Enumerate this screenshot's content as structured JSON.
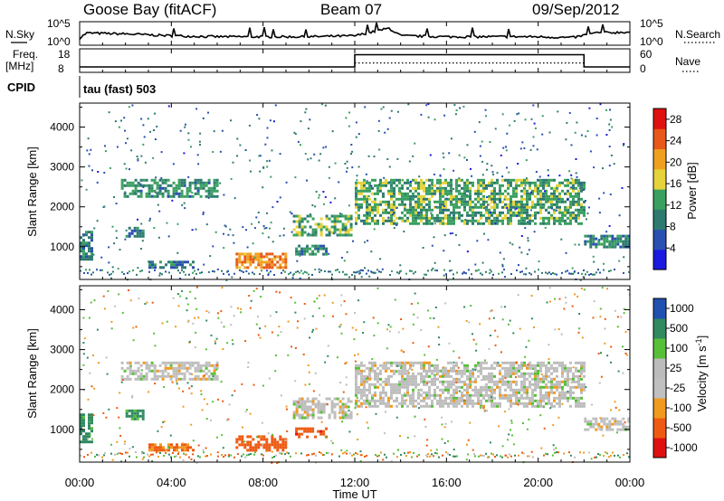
{
  "header": {
    "station": "Goose Bay (fitACF)",
    "beam": "Beam 07",
    "date": "09/Sep/2012"
  },
  "params": {
    "nsky_label": "N.Sky",
    "nsky_tick_hi": "10^5",
    "nsky_tick_lo": "10^0",
    "nsearch_label": "N.Search",
    "nsearch_tick_hi": "10^5",
    "nsearch_tick_lo": "10^0",
    "freq_label": "Freq.",
    "freq_unit": "[MHz]",
    "freq_tick_hi": "18",
    "freq_tick_lo": "8",
    "nave_label": "Nave",
    "nave_tick_hi": "60",
    "nave_tick_lo": "0",
    "cpid_label": "CPID",
    "cpid_text": "tau (fast) 503"
  },
  "colors": {
    "power_scale": [
      "#1a1ae0",
      "#2a4fb0",
      "#2e7a70",
      "#3aa060",
      "#e6d23a",
      "#f0a020",
      "#e85818",
      "#e01010"
    ],
    "velocity_scale": [
      "#e01010",
      "#ee5a12",
      "#f09a20",
      "#c0c0c0",
      "#bcbcbc",
      "#58c038",
      "#2f8a60",
      "#2050b0"
    ]
  },
  "chart_data": [
    {
      "type": "line",
      "name": "sky-noise-panel",
      "ylabel": "N.Sky",
      "y2label": "N.Search",
      "yticks": [
        "10^0",
        "10^5"
      ],
      "description_series": [
        {
          "name": "N.Sky",
          "x_hours": [
            0,
            0.3,
            2,
            4,
            6,
            8,
            10,
            12,
            13.5,
            14,
            16,
            18,
            20,
            21.5,
            22.5,
            24
          ],
          "values_log10": [
            1.5,
            2.6,
            2.4,
            2.0,
            1.8,
            1.8,
            1.8,
            2.0,
            3.6,
            2.0,
            1.8,
            1.8,
            1.8,
            1.6,
            2.6,
            2.8
          ]
        }
      ],
      "xlim": [
        0,
        24
      ]
    },
    {
      "type": "line",
      "name": "freq-nave-panel",
      "ylabel": "Freq. [MHz]",
      "y2label": "Nave",
      "ylim_left": [
        8,
        18
      ],
      "ylim_right": [
        0,
        60
      ],
      "series": [
        {
          "name": "Freq.",
          "x_hours": [
            0,
            12,
            12,
            22,
            22,
            24
          ],
          "values": [
            10.3,
            10.3,
            15.5,
            15.5,
            10.3,
            10.3
          ]
        },
        {
          "name": "Nave",
          "x_hours": [
            12,
            22
          ],
          "values": [
            24,
            24
          ]
        }
      ],
      "xlim": [
        0,
        24
      ]
    },
    {
      "type": "heatmap",
      "name": "power-panel",
      "ylabel": "Slant Range [km]",
      "ylim": [
        180,
        4600
      ],
      "yticks": [
        1000,
        2000,
        3000,
        4000
      ],
      "xlim": [
        0,
        24
      ],
      "colorbar": {
        "label": "Power [dB]",
        "ticks": [
          4,
          8,
          12,
          16,
          20,
          24,
          28
        ],
        "range": [
          0,
          30
        ]
      },
      "regions": [
        {
          "t0": 1.8,
          "t1": 6.0,
          "r0": 2250,
          "r1": 2700,
          "value": 11
        },
        {
          "t0": 2.0,
          "t1": 2.8,
          "r0": 1250,
          "r1": 1500,
          "value": 9
        },
        {
          "t0": 6.8,
          "t1": 9.0,
          "r0": 450,
          "r1": 850,
          "value": 22
        },
        {
          "t0": 3.0,
          "t1": 5.0,
          "r0": 500,
          "r1": 650,
          "value": 9
        },
        {
          "t0": 9.3,
          "t1": 11.9,
          "r0": 1300,
          "r1": 1800,
          "value": 13
        },
        {
          "t0": 9.4,
          "t1": 10.8,
          "r0": 800,
          "r1": 1050,
          "value": 10
        },
        {
          "t0": 12.0,
          "t1": 22.0,
          "r0": 1600,
          "r1": 2700,
          "value": 13
        },
        {
          "t0": 22.0,
          "t1": 24.0,
          "r0": 1000,
          "r1": 1300,
          "value": 10
        },
        {
          "t0": 0.0,
          "t1": 0.5,
          "r0": 700,
          "r1": 1400,
          "value": 9
        }
      ]
    },
    {
      "type": "heatmap",
      "name": "velocity-panel",
      "ylabel": "Slant Range [km]",
      "xlabel": "Time UT",
      "ylim": [
        180,
        4600
      ],
      "yticks": [
        1000,
        2000,
        3000,
        4000
      ],
      "xlim": [
        0,
        24
      ],
      "xticks": [
        "00:00",
        "04:00",
        "08:00",
        "12:00",
        "16:00",
        "20:00",
        "00:00"
      ],
      "colorbar": {
        "label": "Velocity [m s^-1]",
        "ticks": [
          -1000,
          -500,
          -100,
          -25,
          25,
          100,
          500,
          1000
        ]
      },
      "regions": [
        {
          "t0": 1.8,
          "t1": 6.0,
          "r0": 2250,
          "r1": 2700,
          "value": 0
        },
        {
          "t0": 2.0,
          "t1": 2.8,
          "r0": 1250,
          "r1": 1500,
          "value": 150
        },
        {
          "t0": 6.8,
          "t1": 9.0,
          "r0": 450,
          "r1": 850,
          "value": -300
        },
        {
          "t0": 3.0,
          "t1": 5.0,
          "r0": 500,
          "r1": 650,
          "value": -150
        },
        {
          "t0": 9.3,
          "t1": 11.9,
          "r0": 1300,
          "r1": 1800,
          "value": 0
        },
        {
          "t0": 9.4,
          "t1": 10.8,
          "r0": 800,
          "r1": 1050,
          "value": -400
        },
        {
          "t0": 12.0,
          "t1": 22.0,
          "r0": 1600,
          "r1": 2700,
          "value": 0
        },
        {
          "t0": 22.0,
          "t1": 24.0,
          "r0": 1000,
          "r1": 1300,
          "value": 0
        },
        {
          "t0": 0.0,
          "t1": 0.5,
          "r0": 700,
          "r1": 1400,
          "value": 200
        }
      ]
    }
  ]
}
